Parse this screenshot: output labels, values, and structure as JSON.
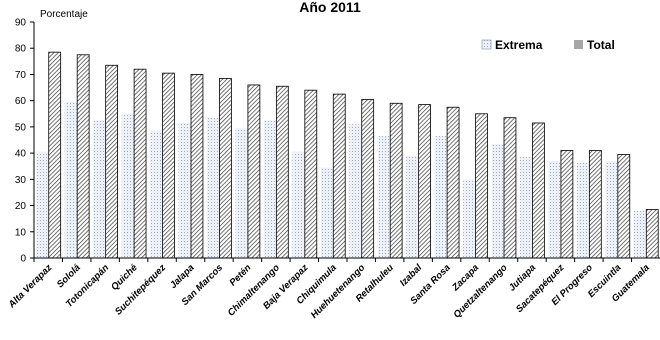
{
  "chart_data": {
    "type": "bar",
    "title": "Año 2011",
    "ylabel": "Porcentaje",
    "xlabel": "",
    "ylim": [
      0,
      90
    ],
    "yticks": [
      0,
      10,
      20,
      30,
      40,
      50,
      60,
      70,
      80,
      90
    ],
    "grid": false,
    "legend_position": "top-right",
    "categories": [
      "Alta Verapaz",
      "Sololá",
      "Totonicapán",
      "Quiché",
      "Suchitepéquez",
      "Jalapa",
      "San Marcos",
      "Petén",
      "Chimaltenango",
      "Baja Verapaz",
      "Chiquimula",
      "Huehuetenango",
      "Retalhuleu",
      "Izabal",
      "Santa Rosa",
      "Zacapa",
      "Quetzaltenango",
      "Jutiapa",
      "Sacatepéquez",
      "El Progreso",
      "Escuintla",
      "Guatemala"
    ],
    "series": [
      {
        "name": "Extrema",
        "color": "#e8eef6",
        "pattern": "dots",
        "values": [
          40.5,
          59.5,
          52.5,
          55.0,
          48.5,
          51.5,
          53.5,
          49.5,
          52.5,
          40.5,
          34.5,
          51.0,
          46.5,
          39.0,
          46.5,
          30.0,
          43.5,
          38.5,
          37.0,
          36.5,
          37.0,
          18.0
        ]
      },
      {
        "name": "Total",
        "color": "#a6a6a6",
        "pattern": "hatch",
        "values": [
          78.5,
          77.5,
          73.5,
          72.0,
          70.5,
          70.0,
          68.5,
          66.0,
          65.5,
          64.0,
          62.5,
          60.5,
          59.0,
          58.5,
          57.5,
          55.0,
          53.5,
          51.5,
          41.0,
          41.0,
          39.5,
          18.5
        ]
      }
    ]
  }
}
